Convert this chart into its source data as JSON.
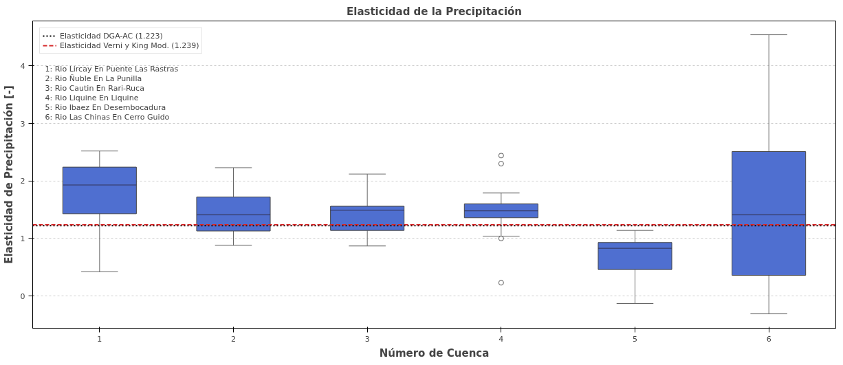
{
  "chart_data": {
    "type": "box",
    "title": "Elasticidad de la Precipitación",
    "xlabel": "Número de Cuenca",
    "ylabel": "Elasticidad de Precipitación [-]",
    "categories": [
      "1",
      "2",
      "3",
      "4",
      "5",
      "6"
    ],
    "series": [
      {
        "color": "#4f6fd0",
        "boxes": [
          {
            "low": 0.42,
            "q1": 1.43,
            "median": 1.93,
            "q3": 2.24,
            "high": 2.52
          },
          {
            "low": 0.88,
            "q1": 1.13,
            "median": 1.41,
            "q3": 1.72,
            "high": 2.23
          },
          {
            "low": 0.87,
            "q1": 1.14,
            "median": 1.49,
            "q3": 1.56,
            "high": 2.12
          },
          {
            "low": 1.04,
            "q1": 1.36,
            "median": 1.48,
            "q3": 1.6,
            "high": 1.79,
            "outliers": [
              2.44,
              2.3,
              1.0,
              0.23
            ]
          },
          {
            "low": -0.13,
            "q1": 0.46,
            "median": 0.83,
            "q3": 0.93,
            "high": 1.14
          },
          {
            "low": -0.31,
            "q1": 0.36,
            "median": 1.41,
            "q3": 2.51,
            "high": 4.54
          }
        ]
      }
    ],
    "ref_lines": [
      {
        "axis": "y",
        "value": 1.223,
        "label": "Elasticidad DGA-AC (1.223)",
        "color": "#000000",
        "line_style": "dotted"
      },
      {
        "axis": "y",
        "value": 1.239,
        "label": "Elasticidad Verni y King Mod. (1.239)",
        "color": "#d62728",
        "line_style": "dashed"
      }
    ],
    "annotations": [
      "1: Rio Lircay En Puente Las Rastras",
      "2: Rio Ñuble En La Punilla",
      "3: Rio Cautin En Rari-Ruca",
      "4: Rio Liquine En Liquine",
      "5: Rio Ibaez En Desembocadura",
      "6: Rio Las Chinas En Cerro Guido"
    ],
    "ylim": [
      -0.56,
      4.78
    ],
    "yticks": [
      0,
      1,
      2,
      3,
      4
    ],
    "grid": "y",
    "legend": "top left"
  }
}
